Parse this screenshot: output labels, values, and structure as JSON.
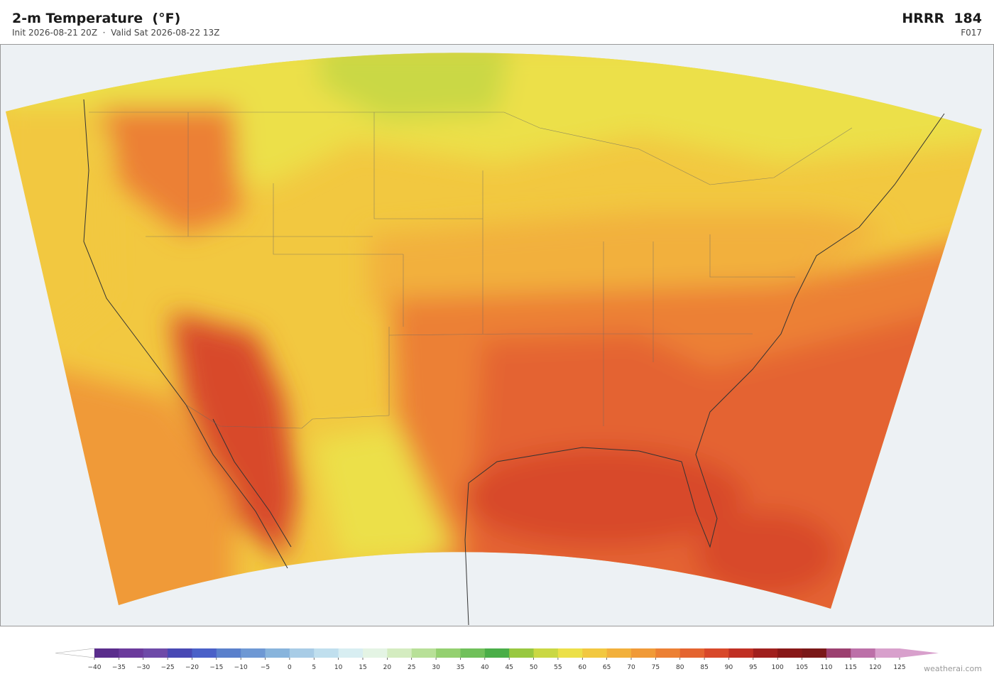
{
  "header": {
    "title": "2-m Temperature  (°F)",
    "subtitle": "Init 2026-08-21 20Z  ·  Valid Sat 2026-08-22 13Z",
    "model": "HRRR  184",
    "forecast_hour": "F017"
  },
  "colorbar": {
    "ticks": [
      {
        "value": -40,
        "label": "−40"
      },
      {
        "value": -35,
        "label": "−35"
      },
      {
        "value": -30,
        "label": "−30"
      },
      {
        "value": -25,
        "label": "−25"
      },
      {
        "value": -20,
        "label": "−20"
      },
      {
        "value": -15,
        "label": "−15"
      },
      {
        "value": -10,
        "label": "−10"
      },
      {
        "value": -5,
        "label": "−5"
      },
      0,
      5,
      10,
      15,
      20,
      25,
      30,
      35,
      40,
      45,
      50,
      55,
      60,
      65,
      70,
      75,
      80,
      85,
      90,
      95,
      100,
      105,
      110,
      115,
      120,
      125
    ],
    "colors": [
      "#5a2d8c",
      "#6b3a9c",
      "#6e4aa8",
      "#4848b4",
      "#4a60c8",
      "#5a80cc",
      "#6e98d4",
      "#88b4dc",
      "#a8cce6",
      "#c0dfee",
      "#d8eef2",
      "#e4f4e4",
      "#d4ecc0",
      "#b8e098",
      "#94d070",
      "#70c05a",
      "#4aae48",
      "#98c840",
      "#cad844",
      "#ece048",
      "#f2c840",
      "#f2b03c",
      "#f09a38",
      "#ec8034",
      "#e46430",
      "#d8482a",
      "#c03024",
      "#a0201e",
      "#881818",
      "#7a1818",
      "#9c4070",
      "#bc70a8",
      "#d8a0cc"
    ],
    "under_color": "#ffffff",
    "over_color": "#d8a0cc"
  },
  "footer": {
    "credit": "weatherai.com"
  }
}
